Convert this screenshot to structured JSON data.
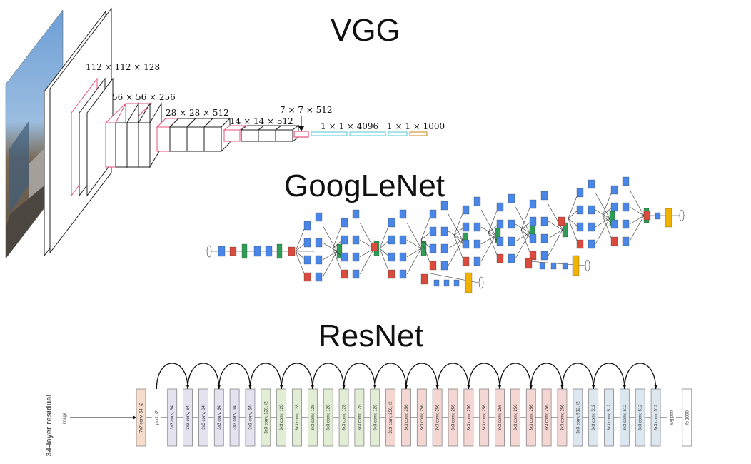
{
  "titles": {
    "vgg": "VGG",
    "googlenet": "GoogLeNet",
    "resnet": "ResNet"
  },
  "vgg": {
    "dims": [
      "112 × 112 × 128",
      "56 × 56 × 256",
      "28 × 28 × 512",
      "14 × 14 × 512",
      "7 × 7 × 512",
      "1 × 1 × 4096",
      "1 × 1 × 1000"
    ]
  },
  "resnet": {
    "side_label": "34-layer residual",
    "input_label": "image",
    "layers": [
      "7x7 conv, 64, /2",
      "pool, /2",
      "3x3 conv, 64",
      "3x3 conv, 64",
      "3x3 conv, 64",
      "3x3 conv, 64",
      "3x3 conv, 64",
      "3x3 conv, 64",
      "3x3 conv, 128, /2",
      "3x3 conv, 128",
      "3x3 conv, 128",
      "3x3 conv, 128",
      "3x3 conv, 128",
      "3x3 conv, 128",
      "3x3 conv, 128",
      "3x3 conv, 128",
      "3x3 conv, 256, /2",
      "3x3 conv, 256",
      "3x3 conv, 256",
      "3x3 conv, 256",
      "3x3 conv, 256",
      "3x3 conv, 256",
      "3x3 conv, 256",
      "3x3 conv, 256",
      "3x3 conv, 256",
      "3x3 conv, 256",
      "3x3 conv, 256",
      "3x3 conv, 256",
      "3x3 conv, 512, /2",
      "3x3 conv, 512",
      "3x3 conv, 512",
      "3x3 conv, 512",
      "3x3 conv, 512",
      "3x3 conv, 512",
      "avg pool",
      "fc 1000"
    ]
  },
  "colors": {
    "vgg_pool": "#e8507a",
    "vgg_fc": "#6fd0dc",
    "vgg_softmax": "#d49a3c",
    "goog_conv": "#4a86e8",
    "goog_pool": "#d94c3d",
    "goog_concat": "#2e9e56",
    "goog_softmax": "#f0b400",
    "res_conv1": "#f6dccb",
    "res_64": "#e4e2ee",
    "res_128": "#e2edd5",
    "res_256": "#f4d6d2",
    "res_512": "#dde7f0"
  }
}
